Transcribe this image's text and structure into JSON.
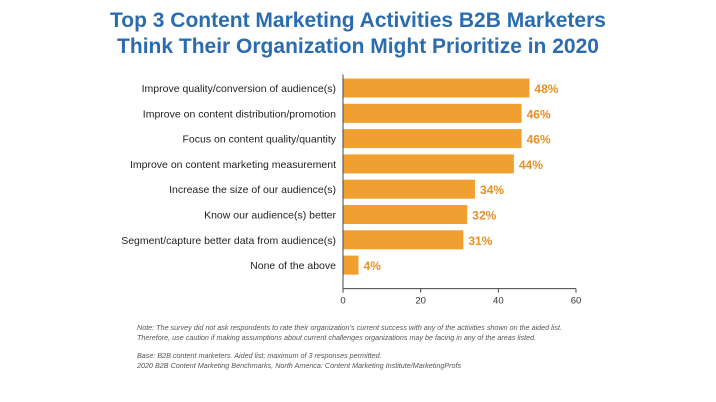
{
  "title_line1": "Top 3 Content Marketing Activities B2B Marketers",
  "title_line2": "Think Their Organization Might Prioritize in 2020",
  "chart_data": {
    "type": "bar",
    "orientation": "horizontal",
    "categories": [
      "Improve quality/conversion of audience(s)",
      "Improve on content distribution/promotion",
      "Focus on content quality/quantity",
      "Improve on content marketing measurement",
      "Increase the size of our audience(s)",
      "Know our audience(s) better",
      "Segment/capture better data from audience(s)",
      "None of the above"
    ],
    "values": [
      48,
      46,
      46,
      44,
      34,
      32,
      31,
      4
    ],
    "value_labels": [
      "48%",
      "46%",
      "46%",
      "44%",
      "34%",
      "32%",
      "31%",
      "4%"
    ],
    "xlim": [
      0,
      60
    ],
    "xticks": [
      "0",
      "20",
      "40",
      "60"
    ],
    "grid": false,
    "bar_color": "#f0a030",
    "label_color": "#e8901f"
  },
  "notes": {
    "line1": "Note: The survey did not ask respondents to rate their organization’s current success with any of the activities shown on the aided list.",
    "line2": "Therefore, use caution if making assumptions about current challenges organizations may be facing in any of the areas listed.",
    "line3": "Base: B2B content marketers. Aided list; maximum of 3 responses permitted.",
    "line4": "2020 B2B Content Marketing Benchmarks, North America: Content Marketing Institute/MarketingProfs"
  }
}
